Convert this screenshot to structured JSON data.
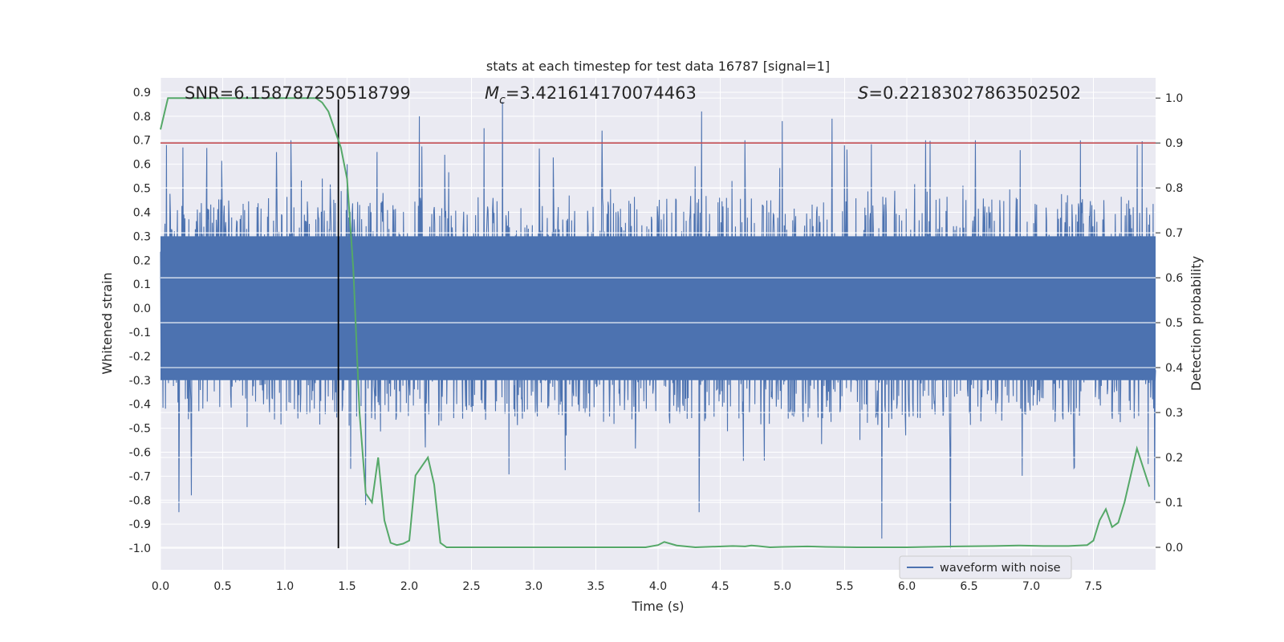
{
  "chart_data": {
    "type": "line",
    "title": "stats at each timestep for test data 16787 [signal=1]",
    "xlabel": "Time (s)",
    "ylabel": "Whitened strain",
    "y2label": "Detection probability",
    "xlim": [
      0.0,
      8.0
    ],
    "ylim": [
      -1.09,
      0.96
    ],
    "y2lim": [
      -0.05,
      1.045
    ],
    "xticks": [
      "0.0",
      "0.5",
      "1.0",
      "1.5",
      "2.0",
      "2.5",
      "3.0",
      "3.5",
      "4.0",
      "4.5",
      "5.0",
      "5.5",
      "6.0",
      "6.5",
      "7.0",
      "7.5"
    ],
    "yticks": [
      "0.9",
      "0.8",
      "0.7",
      "0.6",
      "0.5",
      "0.4",
      "0.3",
      "0.2",
      "0.1",
      "0.0",
      "-0.1",
      "-0.2",
      "-0.3",
      "-0.4",
      "-0.5",
      "-0.6",
      "-0.7",
      "-0.8",
      "-0.9",
      "-1.0"
    ],
    "y2ticks": [
      "1.0",
      "0.9",
      "0.8",
      "0.7",
      "0.6",
      "0.5",
      "0.4",
      "0.3",
      "0.2",
      "0.1",
      "0.0"
    ],
    "annotations": {
      "snr": "SNR=6.158787250518799",
      "mc_symbol": "M",
      "mc_subscript": "c",
      "mc_value": "=3.421614170074463",
      "s_symbol": "S",
      "s_value": "=0.22183027863502502"
    },
    "threshold_y2": 0.9,
    "merger_time": 1.43,
    "merger_line_y_range": [
      -1.0,
      0.87
    ],
    "legend": [
      {
        "label": "waveform with noise",
        "color": "#4c72b0"
      }
    ],
    "legend_position": "lower-right",
    "waveform": {
      "name": "waveform with noise",
      "color": "#4c72b0",
      "samples": 2000,
      "core_amplitude": 0.3,
      "typical_envelope_top": 0.46,
      "typical_envelope_bottom": -0.45,
      "notable_spikes": [
        {
          "t": 0.05,
          "y": 0.68
        },
        {
          "t": 0.18,
          "y": 0.67
        },
        {
          "t": 1.05,
          "y": 0.7
        },
        {
          "t": 1.5,
          "y": 0.6
        },
        {
          "t": 2.08,
          "y": 0.8
        },
        {
          "t": 2.6,
          "y": 0.75
        },
        {
          "t": 2.75,
          "y": 0.86
        },
        {
          "t": 3.55,
          "y": 0.74
        },
        {
          "t": 4.35,
          "y": 0.82
        },
        {
          "t": 4.7,
          "y": 0.7
        },
        {
          "t": 5.0,
          "y": 0.78
        },
        {
          "t": 5.4,
          "y": 0.79
        },
        {
          "t": 6.15,
          "y": 0.7
        },
        {
          "t": 6.55,
          "y": 0.7
        },
        {
          "t": 7.85,
          "y": 0.68
        },
        {
          "t": 0.15,
          "y": -0.85
        },
        {
          "t": 0.25,
          "y": -0.78
        },
        {
          "t": 1.65,
          "y": -0.82
        },
        {
          "t": 4.33,
          "y": -0.85
        },
        {
          "t": 5.8,
          "y": -0.96
        },
        {
          "t": 6.35,
          "y": -1.0
        },
        {
          "t": 7.99,
          "y": -0.8
        }
      ]
    },
    "probability": {
      "name": "detection probability",
      "color": "#55a868",
      "t": [
        0.0,
        0.06,
        0.2,
        0.5,
        0.8,
        1.0,
        1.2,
        1.25,
        1.3,
        1.35,
        1.4,
        1.45,
        1.5,
        1.55,
        1.6,
        1.65,
        1.7,
        1.75,
        1.8,
        1.85,
        1.9,
        1.95,
        2.0,
        2.05,
        2.1,
        2.15,
        2.2,
        2.25,
        2.3,
        2.5,
        3.0,
        3.5,
        3.9,
        4.0,
        4.05,
        4.15,
        4.3,
        4.6,
        4.7,
        4.75,
        4.8,
        4.9,
        5.0,
        5.2,
        5.35,
        5.6,
        6.0,
        6.4,
        6.7,
        6.9,
        7.1,
        7.3,
        7.45,
        7.5,
        7.55,
        7.6,
        7.65,
        7.7,
        7.75,
        7.85,
        7.95
      ],
      "p": [
        0.93,
        1.0,
        1.0,
        1.0,
        1.0,
        1.0,
        1.0,
        1.0,
        0.99,
        0.97,
        0.93,
        0.89,
        0.82,
        0.62,
        0.3,
        0.12,
        0.1,
        0.2,
        0.06,
        0.01,
        0.005,
        0.008,
        0.015,
        0.16,
        0.18,
        0.2,
        0.14,
        0.01,
        0.0,
        0.0,
        0.0,
        0.0,
        0.0,
        0.005,
        0.012,
        0.004,
        0.0,
        0.003,
        0.002,
        0.004,
        0.003,
        0.0,
        0.001,
        0.002,
        0.001,
        0.0,
        0.0,
        0.002,
        0.003,
        0.004,
        0.003,
        0.003,
        0.005,
        0.015,
        0.06,
        0.085,
        0.045,
        0.055,
        0.1,
        0.22,
        0.135
      ]
    },
    "colors": {
      "background": "#eaeaf2",
      "grid": "#ffffff",
      "threshold": "#c44e52",
      "merger_line": "#000000",
      "text": "#262626"
    }
  }
}
